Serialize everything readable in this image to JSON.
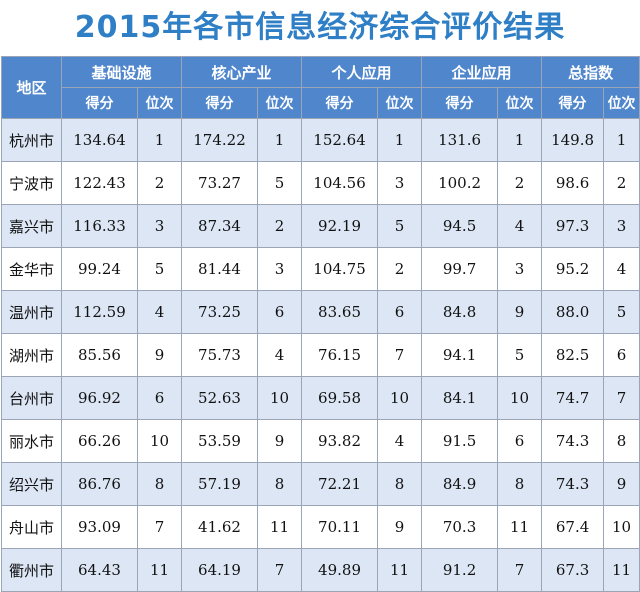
{
  "title": "2015年各市信息经济综合评价结果",
  "table": {
    "region_header": "地区",
    "groups": [
      "基础设施",
      "核心产业",
      "个人应用",
      "企业应用",
      "总指数"
    ],
    "score_label": "得分",
    "rank_label": "位次",
    "rows": [
      {
        "city": "杭州市",
        "cells": [
          "134.64",
          "1",
          "174.22",
          "1",
          "152.64",
          "1",
          "131.6",
          "1",
          "149.8",
          "1"
        ]
      },
      {
        "city": "宁波市",
        "cells": [
          "122.43",
          "2",
          "73.27",
          "5",
          "104.56",
          "3",
          "100.2",
          "2",
          "98.6",
          "2"
        ]
      },
      {
        "city": "嘉兴市",
        "cells": [
          "116.33",
          "3",
          "87.34",
          "2",
          "92.19",
          "5",
          "94.5",
          "4",
          "97.3",
          "3"
        ]
      },
      {
        "city": "金华市",
        "cells": [
          "99.24",
          "5",
          "81.44",
          "3",
          "104.75",
          "2",
          "99.7",
          "3",
          "95.2",
          "4"
        ]
      },
      {
        "city": "温州市",
        "cells": [
          "112.59",
          "4",
          "73.25",
          "6",
          "83.65",
          "6",
          "84.8",
          "9",
          "88.0",
          "5"
        ]
      },
      {
        "city": "湖州市",
        "cells": [
          "85.56",
          "9",
          "75.73",
          "4",
          "76.15",
          "7",
          "94.1",
          "5",
          "82.5",
          "6"
        ]
      },
      {
        "city": "台州市",
        "cells": [
          "96.92",
          "6",
          "52.63",
          "10",
          "69.58",
          "10",
          "84.1",
          "10",
          "74.7",
          "7"
        ]
      },
      {
        "city": "丽水市",
        "cells": [
          "66.26",
          "10",
          "53.59",
          "9",
          "93.82",
          "4",
          "91.5",
          "6",
          "74.3",
          "8"
        ]
      },
      {
        "city": "绍兴市",
        "cells": [
          "86.76",
          "8",
          "57.19",
          "8",
          "72.21",
          "8",
          "84.9",
          "8",
          "74.3",
          "9"
        ]
      },
      {
        "city": "舟山市",
        "cells": [
          "93.09",
          "7",
          "41.62",
          "11",
          "70.11",
          "9",
          "70.3",
          "11",
          "67.4",
          "10"
        ]
      },
      {
        "city": "衢州市",
        "cells": [
          "64.43",
          "11",
          "64.19",
          "7",
          "49.89",
          "11",
          "91.2",
          "7",
          "67.3",
          "11"
        ]
      }
    ]
  }
}
